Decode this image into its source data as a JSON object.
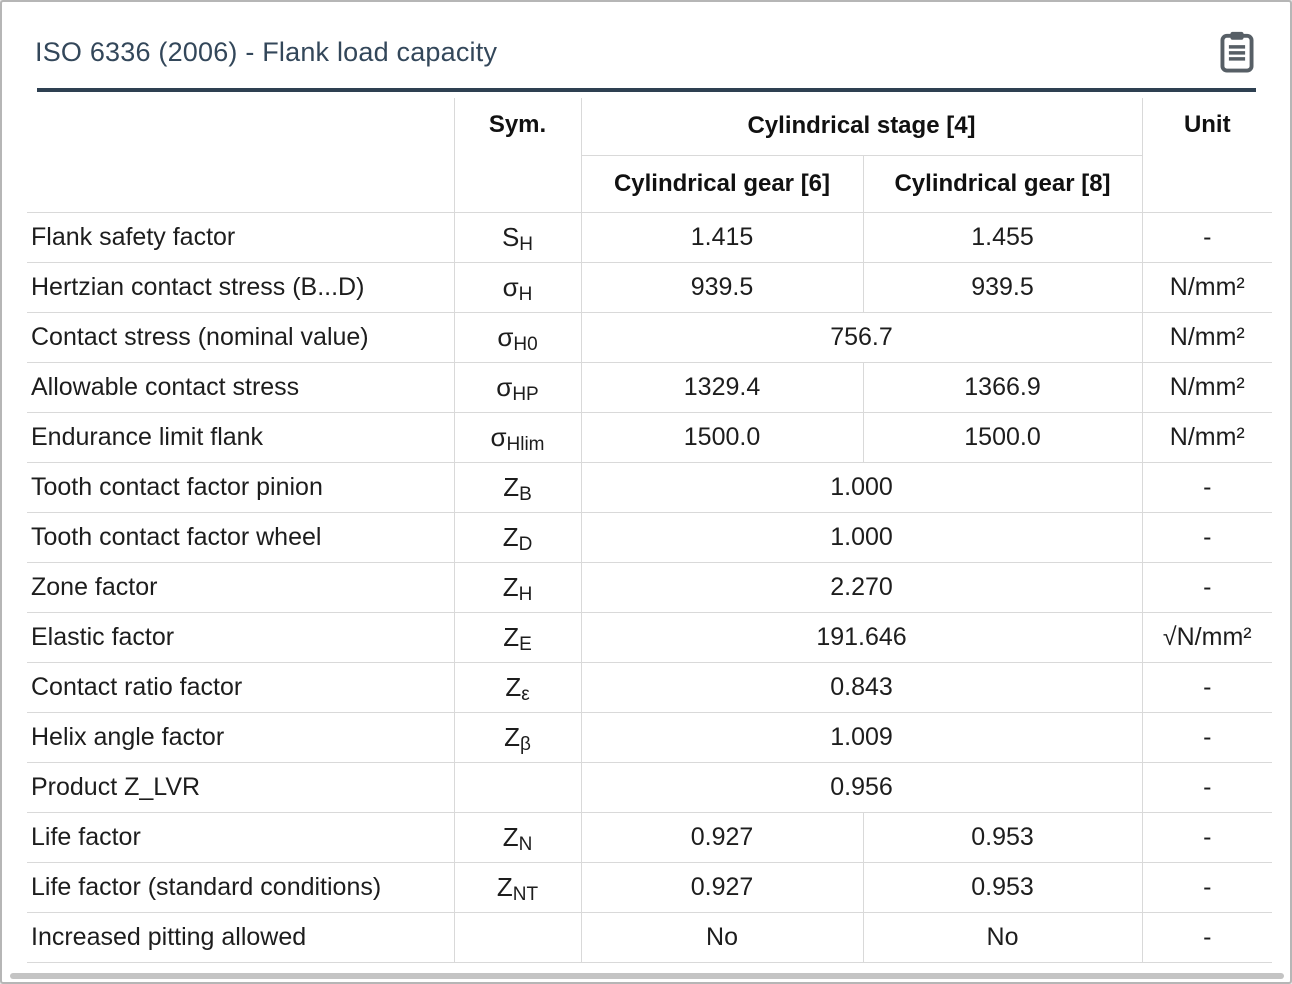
{
  "window": {
    "title": "ISO 6336 (2006) - Flank load capacity"
  },
  "icons": {
    "report": "clipboard-icon"
  },
  "colors": {
    "title": "#33475a",
    "rule": "#2e4051",
    "border": "#d9d9d9",
    "icon": "#575f66",
    "scrollbar": "#c4c4c4"
  },
  "table": {
    "header": {
      "sym": "Sym.",
      "stage": "Cylindrical stage [4]",
      "gears": [
        "Cylindrical gear [6]",
        "Cylindrical gear [8]"
      ],
      "unit": "Unit"
    },
    "rows": [
      {
        "label": "Flank safety factor",
        "sym": "S",
        "sub": "H",
        "values": [
          "1.415",
          "1.455"
        ],
        "unit": "-"
      },
      {
        "label": "Hertzian contact stress (B...D)",
        "sym": "σ",
        "sub": "H",
        "values": [
          "939.5",
          "939.5"
        ],
        "unit": "N/mm²"
      },
      {
        "label": "Contact stress (nominal value)",
        "sym": "σ",
        "sub": "H0",
        "values": [
          "756.7"
        ],
        "unit": "N/mm²"
      },
      {
        "label": "Allowable contact stress",
        "sym": "σ",
        "sub": "HP",
        "values": [
          "1329.4",
          "1366.9"
        ],
        "unit": "N/mm²"
      },
      {
        "label": "Endurance limit flank",
        "sym": "σ",
        "sub": "Hlim",
        "values": [
          "1500.0",
          "1500.0"
        ],
        "unit": "N/mm²"
      },
      {
        "label": "Tooth contact factor pinion",
        "sym": "Z",
        "sub": "B",
        "values": [
          "1.000"
        ],
        "unit": "-"
      },
      {
        "label": "Tooth contact factor wheel",
        "sym": "Z",
        "sub": "D",
        "values": [
          "1.000"
        ],
        "unit": "-"
      },
      {
        "label": "Zone factor",
        "sym": "Z",
        "sub": "H",
        "values": [
          "2.270"
        ],
        "unit": "-"
      },
      {
        "label": "Elastic factor",
        "sym": "Z",
        "sub": "E",
        "values": [
          "191.646"
        ],
        "unit": "√N/mm²"
      },
      {
        "label": "Contact ratio factor",
        "sym": "Z",
        "sub": "ε",
        "values": [
          "0.843"
        ],
        "unit": "-"
      },
      {
        "label": "Helix angle factor",
        "sym": "Z",
        "sub": "β",
        "values": [
          "1.009"
        ],
        "unit": "-"
      },
      {
        "label": "Product Z_LVR",
        "sym": "",
        "sub": "",
        "values": [
          "0.956"
        ],
        "unit": "-"
      },
      {
        "label": "Life factor",
        "sym": "Z",
        "sub": "N",
        "values": [
          "0.927",
          "0.953"
        ],
        "unit": "-"
      },
      {
        "label": "Life factor (standard conditions)",
        "sym": "Z",
        "sub": "NT",
        "values": [
          "0.927",
          "0.953"
        ],
        "unit": "-"
      },
      {
        "label": "Increased pitting allowed",
        "sym": "",
        "sub": "",
        "values": [
          "No",
          "No"
        ],
        "unit": "-"
      }
    ]
  }
}
